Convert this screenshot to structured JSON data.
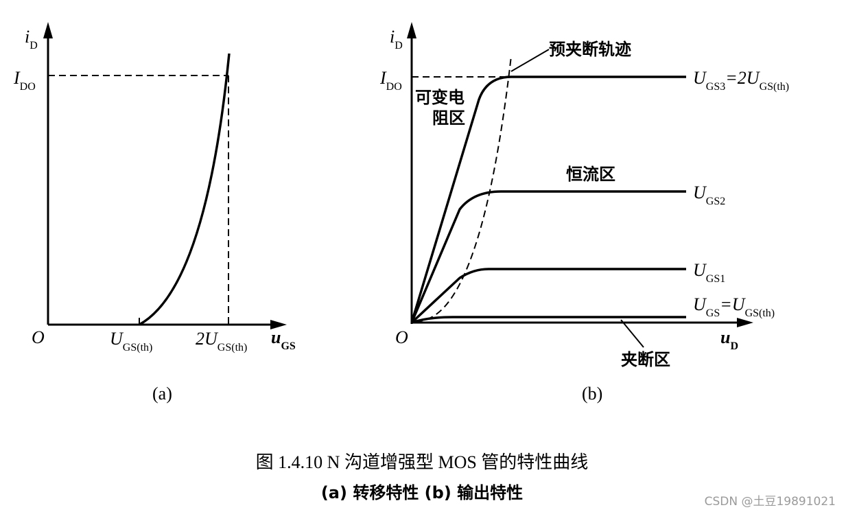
{
  "panel_a": {
    "y_label": [
      "i",
      "D"
    ],
    "y_mark": [
      "I",
      "DO"
    ],
    "origin": "O",
    "x_label": [
      "u",
      "GS"
    ],
    "x_mark_1": [
      "U",
      "GS(th)"
    ],
    "x_mark_2": [
      "2U",
      "GS(th)"
    ],
    "caption": "(a)"
  },
  "panel_b": {
    "y_label": [
      "i",
      "D"
    ],
    "y_mark": [
      "I",
      "DO"
    ],
    "origin": "O",
    "x_label": [
      "u",
      "D"
    ],
    "regions": [
      "预夹断轨迹",
      "可变电",
      "阻区",
      "恒流区",
      "夹断区"
    ],
    "curves": [
      [
        "U",
        "GS3",
        "=2U",
        "GS(th)"
      ],
      [
        "U",
        "GS2"
      ],
      [
        "U",
        "GS1"
      ],
      [
        "U",
        "GS",
        "=U",
        "GS(th)"
      ]
    ],
    "caption": "(b)"
  },
  "caption": {
    "title": "图 1.4.10   N 沟道增强型 MOS 管的特性曲线",
    "subtitle": "(a) 转移特性  (b) 输出特性"
  },
  "watermark": "CSDN @土豆19891021"
}
